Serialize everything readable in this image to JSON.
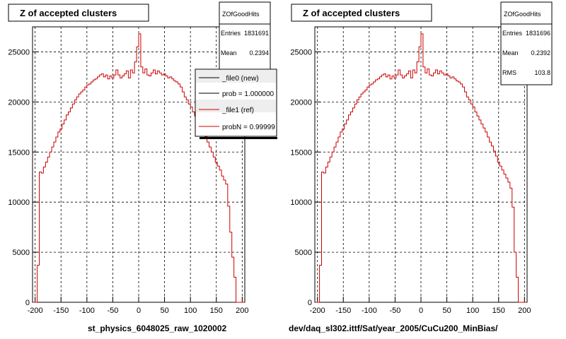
{
  "colors": {
    "histogram": "#cc0000",
    "frame": "#000000",
    "grid": "#000000",
    "background": "#ffffff"
  },
  "left_panel": {
    "title": "Z of accepted clusters",
    "xlabel": "st_physics_6048025_raw_1020002",
    "stats": {
      "name": "ZOfGoodHits",
      "rows": [
        {
          "label": "Entries",
          "value": "1831691"
        },
        {
          "label": "Mean",
          "value": "0.2394"
        }
      ]
    },
    "legend": [
      {
        "label": "_file0 (new)",
        "color": "#000000"
      },
      {
        "label": "prob = 1.000000",
        "color": "#000000"
      },
      {
        "label": "_file1 (ref)",
        "color": "#cc0000"
      },
      {
        "label": "probN = 0.99999",
        "color": "#cc0000"
      }
    ]
  },
  "right_panel": {
    "title": "Z of accepted clusters",
    "xlabel": "dev/daq_sl302.ittf/Sat/year_2005/CuCu200_MinBias/",
    "stats": {
      "name": "ZOfGoodHits",
      "rows": [
        {
          "label": "Entries",
          "value": "1831696"
        },
        {
          "label": "Mean",
          "value": "0.2392"
        },
        {
          "label": "RMS",
          "value": "103.8"
        }
      ]
    }
  },
  "chart_data": [
    {
      "type": "line",
      "title": "Z of accepted clusters",
      "xlabel": "st_physics_6048025_raw_1020002",
      "ylabel": "",
      "xlim": [
        -205,
        205
      ],
      "ylim": [
        0,
        27500
      ],
      "xticks": [
        -200,
        -150,
        -100,
        -50,
        0,
        50,
        100,
        150,
        200
      ],
      "yticks": [
        0,
        5000,
        10000,
        15000,
        20000,
        25000
      ],
      "grid": true,
      "legend_position": "top-right",
      "series": [
        {
          "name": "_file1 (ref)",
          "x": [
            -204,
            -200,
            -196,
            -192,
            -188,
            -184,
            -180,
            -176,
            -172,
            -168,
            -164,
            -160,
            -156,
            -152,
            -148,
            -144,
            -140,
            -136,
            -132,
            -128,
            -124,
            -120,
            -116,
            -112,
            -108,
            -104,
            -100,
            -96,
            -92,
            -88,
            -84,
            -80,
            -76,
            -72,
            -68,
            -64,
            -60,
            -56,
            -52,
            -48,
            -44,
            -40,
            -36,
            -32,
            -28,
            -24,
            -20,
            -16,
            -12,
            -8,
            -4,
            0,
            4,
            8,
            12,
            16,
            20,
            24,
            28,
            32,
            36,
            40,
            44,
            48,
            52,
            56,
            60,
            64,
            68,
            72,
            76,
            80,
            84,
            88,
            92,
            96,
            100,
            104,
            108,
            112,
            116,
            120,
            124,
            128,
            132,
            136,
            140,
            144,
            148,
            152,
            156,
            160,
            164,
            168,
            172,
            176,
            180,
            184,
            188,
            192,
            196,
            200
          ],
          "values": [
            0,
            0,
            3700,
            13000,
            12900,
            13500,
            14000,
            14500,
            15000,
            15500,
            16000,
            16500,
            17000,
            17300,
            17800,
            18200,
            18700,
            19000,
            19400,
            19800,
            20200,
            20500,
            20800,
            21000,
            21200,
            21500,
            21700,
            21800,
            22000,
            22200,
            22300,
            22500,
            22700,
            22800,
            22500,
            22700,
            22300,
            22600,
            22400,
            22700,
            23200,
            22700,
            22400,
            22600,
            22800,
            23100,
            22400,
            23200,
            22900,
            24000,
            25500,
            26800,
            23500,
            22900,
            23300,
            22700,
            22600,
            22900,
            23200,
            22800,
            23100,
            22900,
            22700,
            22800,
            22600,
            22400,
            22500,
            22300,
            22100,
            22000,
            21800,
            21500,
            21000,
            20500,
            20200,
            19800,
            19500,
            19000,
            18600,
            18200,
            17800,
            17400,
            17000,
            16500,
            16000,
            15500,
            15000,
            14500,
            14000,
            13600,
            13200,
            12600,
            12200,
            11800,
            9600,
            7000,
            4500,
            2500,
            0,
            0,
            0,
            0
          ]
        }
      ]
    },
    {
      "type": "line",
      "title": "Z of accepted clusters",
      "xlabel": "dev/daq_sl302.ittf/Sat/year_2005/CuCu200_MinBias/",
      "ylabel": "",
      "xlim": [
        -205,
        205
      ],
      "ylim": [
        0,
        27500
      ],
      "xticks": [
        -200,
        -150,
        -100,
        -50,
        0,
        50,
        100,
        150,
        200
      ],
      "yticks": [
        0,
        5000,
        10000,
        15000,
        20000,
        25000
      ],
      "grid": true,
      "series": [
        {
          "name": "",
          "x": [
            -204,
            -200,
            -196,
            -192,
            -188,
            -184,
            -180,
            -176,
            -172,
            -168,
            -164,
            -160,
            -156,
            -152,
            -148,
            -144,
            -140,
            -136,
            -132,
            -128,
            -124,
            -120,
            -116,
            -112,
            -108,
            -104,
            -100,
            -96,
            -92,
            -88,
            -84,
            -80,
            -76,
            -72,
            -68,
            -64,
            -60,
            -56,
            -52,
            -48,
            -44,
            -40,
            -36,
            -32,
            -28,
            -24,
            -20,
            -16,
            -12,
            -8,
            -4,
            0,
            4,
            8,
            12,
            16,
            20,
            24,
            28,
            32,
            36,
            40,
            44,
            48,
            52,
            56,
            60,
            64,
            68,
            72,
            76,
            80,
            84,
            88,
            92,
            96,
            100,
            104,
            108,
            112,
            116,
            120,
            124,
            128,
            132,
            136,
            140,
            144,
            148,
            152,
            156,
            160,
            164,
            168,
            172,
            176,
            180,
            184,
            188,
            192,
            196,
            200
          ],
          "values": [
            0,
            0,
            3700,
            13000,
            12900,
            13500,
            14000,
            14500,
            15000,
            15500,
            16000,
            16500,
            17000,
            17300,
            17800,
            18200,
            18700,
            19000,
            19400,
            19800,
            20200,
            20500,
            20800,
            21000,
            21200,
            21500,
            21700,
            21800,
            22000,
            22200,
            22300,
            22500,
            22700,
            22800,
            22500,
            22700,
            22300,
            22600,
            22400,
            22700,
            23200,
            22700,
            22400,
            22600,
            22800,
            23100,
            22400,
            23200,
            22900,
            24000,
            25500,
            26800,
            23500,
            22900,
            23300,
            22700,
            22600,
            22900,
            23200,
            22800,
            23100,
            22900,
            22700,
            22800,
            22600,
            22400,
            22500,
            22300,
            22100,
            22000,
            21800,
            21500,
            21000,
            20500,
            20200,
            19800,
            19500,
            19000,
            18600,
            18200,
            17800,
            17400,
            17000,
            16500,
            16000,
            15600,
            15100,
            14600,
            14000,
            13600,
            13200,
            12800,
            12400,
            12000,
            11400,
            9500,
            5000,
            2500,
            0,
            0,
            0,
            0
          ]
        }
      ]
    }
  ]
}
